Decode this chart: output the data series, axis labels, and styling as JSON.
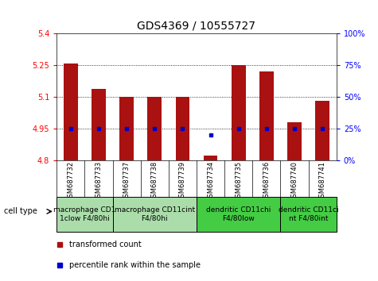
{
  "title": "GDS4369 / 10555727",
  "samples": [
    "GSM687732",
    "GSM687733",
    "GSM687737",
    "GSM687738",
    "GSM687739",
    "GSM687734",
    "GSM687735",
    "GSM687736",
    "GSM687740",
    "GSM687741"
  ],
  "transformed_count": [
    5.26,
    5.14,
    5.1,
    5.1,
    5.1,
    4.82,
    5.25,
    5.22,
    4.98,
    5.08
  ],
  "percentile_rank": [
    25,
    25,
    25,
    25,
    25,
    20,
    25,
    25,
    25,
    25
  ],
  "ylim_left": [
    4.8,
    5.4
  ],
  "ylim_right": [
    0,
    100
  ],
  "yticks_left": [
    4.8,
    4.95,
    5.1,
    5.25,
    5.4
  ],
  "ytick_labels_left": [
    "4.8",
    "4.95",
    "5.1",
    "5.25",
    "5.4"
  ],
  "yticks_right": [
    0,
    25,
    50,
    75,
    100
  ],
  "ytick_labels_right": [
    "0%",
    "25%",
    "50%",
    "75%",
    "100%"
  ],
  "bar_color": "#aa1111",
  "dot_color": "#0000cc",
  "groups": [
    {
      "label": "macrophage CD1\n1clow F4/80hi",
      "start": 0,
      "end": 2,
      "color": "#aaddaa"
    },
    {
      "label": "macrophage CD11cint\nF4/80hi",
      "start": 2,
      "end": 5,
      "color": "#aaddaa"
    },
    {
      "label": "dendritic CD11chi\nF4/80low",
      "start": 5,
      "end": 8,
      "color": "#44cc44"
    },
    {
      "label": "dendritic CD11ci\nnt F4/80int",
      "start": 8,
      "end": 10,
      "color": "#44cc44"
    }
  ],
  "legend_bar_label": "transformed count",
  "legend_dot_label": "percentile rank within the sample",
  "cell_type_label": "cell type",
  "background_color": "#ffffff",
  "sample_row_color": "#cccccc",
  "title_fontsize": 10,
  "axis_fontsize": 7,
  "sample_fontsize": 6,
  "group_fontsize": 6.5,
  "legend_fontsize": 7
}
